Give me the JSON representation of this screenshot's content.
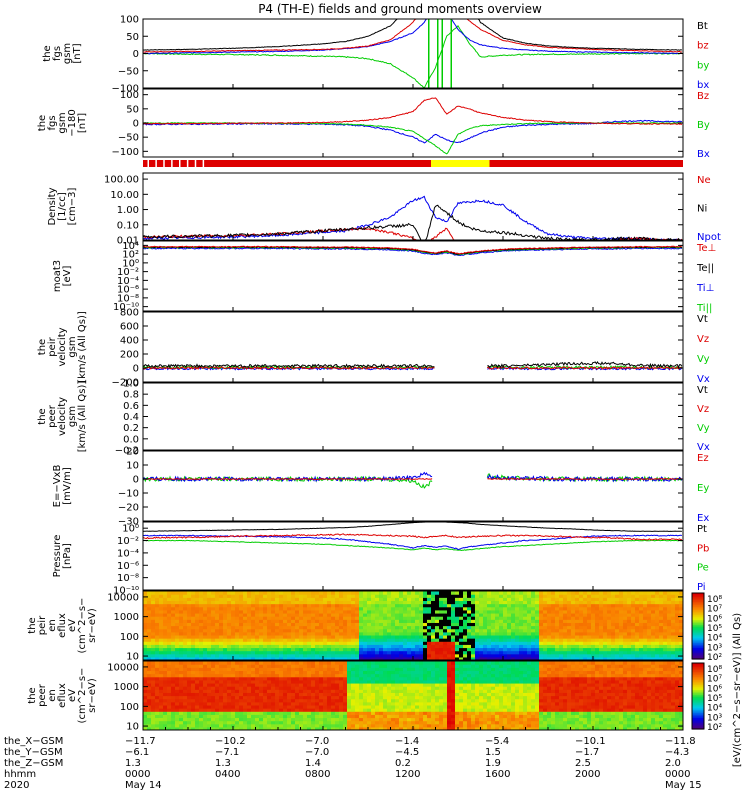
{
  "title": "P4 (TH-E) fields and ground moments overview",
  "colors": {
    "black": "#000000",
    "red": "#dd0000",
    "green": "#00cc00",
    "blue": "#0000ee",
    "yellow": "#ffff00"
  },
  "panels": [
    {
      "id": "fgs-gsm",
      "ylabel": [
        "the",
        "fgs",
        "gsm",
        "[nT]"
      ],
      "ticks": [
        "100",
        "50",
        "0",
        "−50",
        "−100"
      ],
      "tickvals": [
        100,
        50,
        0,
        -50,
        -100
      ],
      "ylim": [
        -100,
        100
      ],
      "legend": [
        {
          "text": "Bt",
          "color": "#000000"
        },
        {
          "text": "bz",
          "color": "#dd0000"
        },
        {
          "text": "by",
          "color": "#00cc00"
        },
        {
          "text": "bx",
          "color": "#0000ee"
        }
      ]
    },
    {
      "id": "fgs-gsm-180",
      "ylabel": [
        "the",
        "fgs",
        "gsm",
        "−180",
        "[nT]"
      ],
      "ticks": [
        "100",
        "50",
        "0",
        "−50",
        "−100"
      ],
      "tickvals": [
        100,
        50,
        0,
        -50,
        -100
      ],
      "ylim": [
        -120,
        120
      ],
      "legend": [
        {
          "text": "Bz",
          "color": "#dd0000"
        },
        {
          "text": "By",
          "color": "#00cc00"
        },
        {
          "text": "Bx",
          "color": "#0000ee"
        }
      ]
    },
    {
      "id": "density",
      "ylabel": [
        "Density",
        "[1/cc]",
        "[cm−3]"
      ],
      "ticks": [
        "100.00",
        "10.00",
        "1.00",
        "0.10",
        "0.01"
      ],
      "tickvals": [
        4,
        3,
        2,
        1,
        0
      ],
      "ylim": [
        0,
        4.4
      ],
      "legend": [
        {
          "text": "Ne",
          "color": "#dd0000"
        },
        {
          "text": "Ni",
          "color": "#000000"
        },
        {
          "text": "Npot",
          "color": "#0000ee"
        }
      ]
    },
    {
      "id": "temperature",
      "ylabel": [
        "moat3",
        "[eV]"
      ],
      "ticks": [
        "10⁴",
        "10²",
        "10⁰",
        "10⁻²",
        "10⁻⁴",
        "10⁻⁶",
        "10⁻⁸",
        "10⁻¹⁰"
      ],
      "tickvals": [
        4,
        2,
        0,
        -2,
        -4,
        -6,
        -8,
        -10
      ],
      "ylim": [
        -11,
        5
      ],
      "legend": [
        {
          "text": "Te⊥",
          "color": "#dd0000"
        },
        {
          "text": "Te||",
          "color": "#000000"
        },
        {
          "text": "Ti⊥",
          "color": "#0000ee"
        },
        {
          "text": "Ti||",
          "color": "#00cc00"
        }
      ]
    },
    {
      "id": "peir-velocity",
      "ylabel": [
        "the",
        "peir",
        "velocity",
        "gsm",
        "[km/s (All Qs)]"
      ],
      "ticks": [
        "800",
        "600",
        "400",
        "200",
        "0",
        "−200"
      ],
      "tickvals": [
        800,
        600,
        400,
        200,
        0,
        -200
      ],
      "ylim": [
        -200,
        800
      ],
      "legend": [
        {
          "text": "Vt",
          "color": "#000000"
        },
        {
          "text": "Vz",
          "color": "#dd0000"
        },
        {
          "text": "Vy",
          "color": "#00cc00"
        },
        {
          "text": "Vx",
          "color": "#0000ee"
        }
      ]
    },
    {
      "id": "peer-velocity",
      "ylabel": [
        "the",
        "peer",
        "velocity",
        "gsm",
        "[km/s (All Qs)]"
      ],
      "ticks": [
        "1.0",
        "0.8",
        "0.6",
        "0.4",
        "0.2",
        "0.0",
        "−0.2"
      ],
      "tickvals": [
        1,
        0.8,
        0.6,
        0.4,
        0.2,
        0,
        -0.2
      ],
      "ylim": [
        -0.2,
        1
      ],
      "legend": [
        {
          "text": "Vt",
          "color": "#000000"
        },
        {
          "text": "Vz",
          "color": "#dd0000"
        },
        {
          "text": "Vy",
          "color": "#00cc00"
        },
        {
          "text": "Vx",
          "color": "#0000ee"
        }
      ]
    },
    {
      "id": "efield",
      "ylabel": [
        "E=−VxB",
        "[mV/m]"
      ],
      "ticks": [
        "20",
        "10",
        "0",
        "−10",
        "−20",
        "−30"
      ],
      "tickvals": [
        20,
        10,
        0,
        -10,
        -20,
        -30
      ],
      "ylim": [
        -30,
        20
      ],
      "legend": [
        {
          "text": "Ez",
          "color": "#dd0000"
        },
        {
          "text": "Ey",
          "color": "#00cc00"
        },
        {
          "text": "Ex",
          "color": "#0000ee"
        }
      ]
    },
    {
      "id": "pressure",
      "ylabel": [
        "Pressure",
        "[nPa]"
      ],
      "ticks": [
        "10⁰",
        "10⁻²",
        "10⁻⁴",
        "10⁻⁶",
        "10⁻⁸",
        "10⁻¹⁰"
      ],
      "tickvals": [
        0,
        -2,
        -4,
        -6,
        -8,
        -10
      ],
      "ylim": [
        -10,
        1
      ],
      "legend": [
        {
          "text": "Pt",
          "color": "#000000"
        },
        {
          "text": "Pb",
          "color": "#dd0000"
        },
        {
          "text": "Pe",
          "color": "#00cc00"
        },
        {
          "text": "Pi",
          "color": "#0000ee"
        }
      ]
    },
    {
      "id": "peir-eflux",
      "ylabel": [
        "the",
        "peir",
        "en",
        "eflux",
        "eV",
        "(cm^2−s−",
        "sr−eV)"
      ],
      "ticks": [
        "10000",
        "1000",
        "100",
        "10"
      ],
      "tickvals": [
        4,
        3,
        2,
        1
      ],
      "ylim": [
        0.8,
        4.3
      ],
      "legend": []
    },
    {
      "id": "peer-eflux",
      "ylabel": [
        "the",
        "peer",
        "en",
        "eflux",
        "eV",
        "(cm^2−s−",
        "sr−eV)"
      ],
      "ticks": [
        "10000",
        "1000",
        "100",
        "10"
      ],
      "tickvals": [
        4,
        3,
        2,
        1
      ],
      "ylim": [
        0.8,
        4.3
      ],
      "legend": []
    }
  ],
  "colorbars": [
    {
      "labels": [
        "10⁸",
        "10⁷",
        "10⁶",
        "10⁵",
        "10⁴",
        "10³",
        "10²"
      ]
    },
    {
      "labels": [
        "10⁸",
        "10⁷",
        "10⁶",
        "10⁵",
        "10⁴",
        "10³",
        "10²"
      ]
    }
  ],
  "colorbar_title": "[eV/(cm^2−s−sr−eV)] (All Qs)",
  "xaxis": {
    "row_labels": [
      "the_X−GSM",
      "the_Y−GSM",
      "the_Z−GSM",
      "hhmm",
      "2020"
    ],
    "columns": [
      {
        "hour": 0,
        "x": "−11.7",
        "y": "−6.1",
        "z": "1.3",
        "hhmm": "0000",
        "date": "May 14"
      },
      {
        "hour": 4,
        "x": "−10.2",
        "y": "−7.1",
        "z": "1.3",
        "hhmm": "0400",
        "date": ""
      },
      {
        "hour": 8,
        "x": "−7.0",
        "y": "−7.0",
        "z": "1.4",
        "hhmm": "0800",
        "date": ""
      },
      {
        "hour": 12,
        "x": "−1.4",
        "y": "−4.5",
        "z": "0.2",
        "hhmm": "1200",
        "date": ""
      },
      {
        "hour": 16,
        "x": "−5.4",
        "y": "1.5",
        "z": "1.9",
        "hhmm": "1600",
        "date": ""
      },
      {
        "hour": 20,
        "x": "−10.1",
        "y": "−1.7",
        "z": "2.5",
        "hhmm": "2000",
        "date": ""
      },
      {
        "hour": 24,
        "x": "−11.8",
        "y": "−4.3",
        "z": "2.0",
        "hhmm": "0000",
        "date": "May 15"
      }
    ]
  },
  "chart_data": {
    "type": "line",
    "title": "P4 (TH-E) fields and ground moments overview",
    "x_range_hours": [
      0,
      24
    ],
    "series_samples": {
      "x_hours": [
        0,
        2,
        4,
        6,
        8,
        9,
        10,
        11,
        12,
        12.5,
        13,
        13.5,
        14,
        14.5,
        15,
        16,
        17,
        18,
        19,
        20,
        21,
        22,
        23,
        24
      ],
      "fgs_Bt": [
        10,
        12,
        15,
        20,
        28,
        35,
        50,
        80,
        150,
        220,
        300,
        260,
        200,
        150,
        90,
        45,
        30,
        22,
        18,
        15,
        14,
        12,
        11,
        10
      ],
      "fgs_bz": [
        5,
        6,
        8,
        10,
        12,
        15,
        22,
        40,
        90,
        140,
        160,
        150,
        120,
        95,
        70,
        38,
        25,
        18,
        15,
        12,
        10,
        8,
        6,
        5
      ],
      "fgs_by": [
        0,
        -2,
        -3,
        -5,
        -8,
        -10,
        -15,
        -30,
        -70,
        -100,
        -40,
        50,
        80,
        30,
        -10,
        -5,
        -3,
        -2,
        -2,
        -1,
        -1,
        0,
        0,
        0
      ],
      "fgs_bx": [
        0,
        2,
        4,
        6,
        10,
        14,
        20,
        35,
        60,
        90,
        150,
        120,
        70,
        40,
        25,
        15,
        10,
        7,
        5,
        4,
        3,
        2,
        1,
        0
      ],
      "Bz_180": [
        -3,
        -2,
        -1,
        0,
        2,
        5,
        10,
        20,
        40,
        80,
        90,
        30,
        60,
        50,
        35,
        20,
        10,
        5,
        2,
        0,
        -2,
        -3,
        -3,
        -4
      ],
      "By_180": [
        0,
        0,
        0,
        -1,
        -2,
        -4,
        -8,
        -15,
        -30,
        -55,
        -80,
        -110,
        -40,
        -20,
        -10,
        -5,
        -2,
        -1,
        0,
        0,
        0,
        0,
        0,
        0
      ],
      "Bx_180": [
        -5,
        -4,
        -3,
        -3,
        -4,
        -6,
        -12,
        -25,
        -50,
        -70,
        -40,
        -60,
        -70,
        -55,
        -35,
        -15,
        -8,
        -5,
        -3,
        -2,
        5,
        8,
        6,
        4
      ],
      "Ne_log": [
        0.2,
        0.25,
        0.3,
        0.4,
        0.6,
        0.7,
        0.75,
        0.5,
        0.1,
        -0.3,
        0.2,
        0.8,
        -0.5,
        -0.8,
        -0.6,
        -0.3,
        -0.2,
        -0.1,
        -0.2,
        -0.1,
        0.0,
        0.1,
        0.0,
        0.0
      ],
      "Ni_log": [
        0.2,
        0.25,
        0.3,
        0.4,
        0.6,
        0.7,
        0.8,
        0.9,
        1.0,
        -0.5,
        2.3,
        1.8,
        1.2,
        0.8,
        0.6,
        0.5,
        0.3,
        0.1,
        0.0,
        0.0,
        0.1,
        0.1,
        0.0,
        0.0
      ],
      "Npot_log": [
        0.1,
        0.15,
        0.2,
        0.3,
        0.5,
        0.6,
        1.0,
        1.5,
        2.6,
        2.8,
        1.5,
        1.2,
        2.4,
        2.5,
        2.6,
        2.3,
        1.2,
        0.4,
        0.2,
        0.1,
        0.1,
        0.1,
        0.0,
        0.0
      ],
      "Pt_log": [
        -0.5,
        -0.4,
        -0.3,
        -0.2,
        0.0,
        0.1,
        0.3,
        0.6,
        0.9,
        1.0,
        1.1,
        1.0,
        0.9,
        0.8,
        0.6,
        0.4,
        0.2,
        0.0,
        -0.1,
        -0.3,
        -0.4,
        -0.5,
        -0.5,
        -0.5
      ],
      "Pb_log": [
        -1.6,
        -1.5,
        -1.3,
        -1.2,
        -1.1,
        -1.0,
        -1.1,
        -1.2,
        -1.3,
        -1.5,
        -1.3,
        -1.2,
        -1.5,
        -1.4,
        -1.3,
        -1.2,
        -1.2,
        -1.3,
        -1.4,
        -1.5,
        -1.6,
        -1.8,
        -1.8,
        -1.8
      ],
      "Pe_log": [
        -2.0,
        -2.0,
        -2.2,
        -2.4,
        -2.6,
        -2.8,
        -3.0,
        -3.2,
        -3.5,
        -3.2,
        -3.5,
        -3.3,
        -3.6,
        -3.5,
        -3.3,
        -3.0,
        -2.8,
        -2.6,
        -2.4,
        -2.2,
        -2.1,
        -2.0,
        -2.0,
        -2.0
      ],
      "Pi_log": [
        -1.2,
        -1.2,
        -1.3,
        -1.4,
        -1.6,
        -1.8,
        -2.2,
        -2.6,
        -3.2,
        -2.8,
        -3.1,
        -2.9,
        -3.4,
        -3.0,
        -2.8,
        -2.4,
        -2.0,
        -1.8,
        -1.5,
        -1.3,
        -1.2,
        -1.2,
        -1.2,
        -1.2
      ]
    }
  }
}
